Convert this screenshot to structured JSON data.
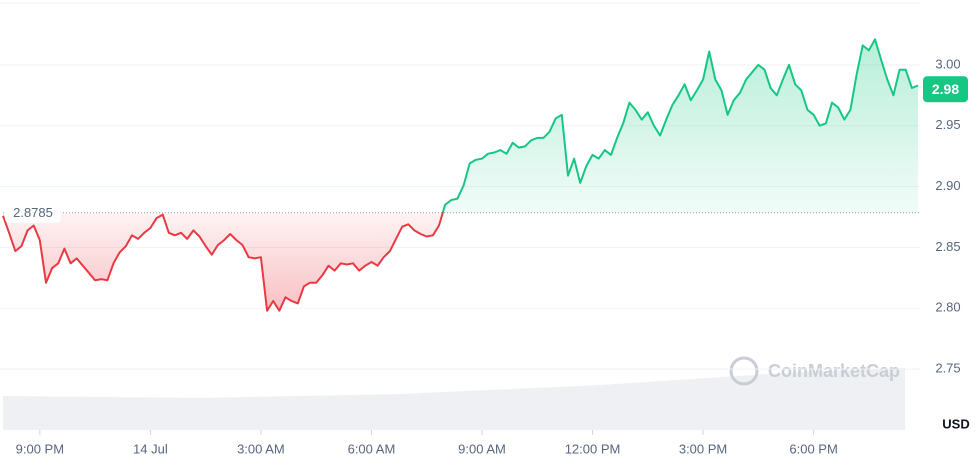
{
  "chart_data": {
    "type": "baseline-line",
    "values": [
      2.876,
      2.862,
      2.847,
      2.851,
      2.864,
      2.868,
      2.856,
      2.821,
      2.833,
      2.837,
      2.849,
      2.837,
      2.841,
      2.835,
      2.829,
      2.823,
      2.824,
      2.823,
      2.837,
      2.846,
      2.851,
      2.86,
      2.857,
      2.862,
      2.866,
      2.874,
      2.877,
      2.862,
      2.86,
      2.862,
      2.857,
      2.864,
      2.859,
      2.851,
      2.844,
      2.852,
      2.856,
      2.861,
      2.856,
      2.852,
      2.842,
      2.841,
      2.842,
      2.798,
      2.806,
      2.798,
      2.809,
      2.806,
      2.804,
      2.818,
      2.821,
      2.821,
      2.827,
      2.835,
      2.831,
      2.837,
      2.836,
      2.837,
      2.831,
      2.835,
      2.838,
      2.835,
      2.842,
      2.847,
      2.857,
      2.867,
      2.869,
      2.864,
      2.861,
      2.859,
      2.86,
      2.868,
      2.885,
      2.889,
      2.89,
      2.901,
      2.919,
      2.922,
      2.923,
      2.927,
      2.928,
      2.93,
      2.927,
      2.936,
      2.932,
      2.933,
      2.938,
      2.94,
      2.94,
      2.945,
      2.956,
      2.959,
      2.909,
      2.923,
      2.903,
      2.917,
      2.926,
      2.923,
      2.93,
      2.926,
      2.94,
      2.952,
      2.969,
      2.963,
      2.955,
      2.961,
      2.95,
      2.942,
      2.955,
      2.967,
      2.975,
      2.984,
      2.971,
      2.979,
      2.988,
      3.011,
      2.988,
      2.979,
      2.959,
      2.971,
      2.977,
      2.988,
      2.994,
      3.0,
      2.996,
      2.981,
      2.975,
      2.988,
      3.0,
      2.984,
      2.979,
      2.963,
      2.959,
      2.95,
      2.952,
      2.969,
      2.965,
      2.955,
      2.963,
      2.992,
      3.016,
      3.012,
      3.021,
      3.004,
      2.988,
      2.975,
      2.996,
      2.996,
      2.981,
      2.983
    ],
    "baseline": 2.8785,
    "current_price": 2.98,
    "up_color": "#16c784",
    "down_color": "#ea3943",
    "xlim": [
      0,
      149
    ],
    "xticks": [
      {
        "value": 6,
        "label": "9:00 PM"
      },
      {
        "value": 24,
        "label": "14 Jul"
      },
      {
        "value": 42,
        "label": "3:00 AM"
      },
      {
        "value": 60,
        "label": "6:00 AM"
      },
      {
        "value": 78,
        "label": "9:00 AM"
      },
      {
        "value": 96,
        "label": "12:00 PM"
      },
      {
        "value": 114,
        "label": "3:00 PM"
      },
      {
        "value": 132,
        "label": "6:00 PM"
      }
    ],
    "ylim": [
      2.7,
      3.05
    ],
    "yticks": [
      2.75,
      {
        "value": 2.8,
        "label": "2.80"
      },
      2.85,
      {
        "value": 2.9,
        "label": "2.90"
      },
      2.95,
      {
        "value": 3.0,
        "label": "3.00"
      }
    ],
    "y_unit": "USD",
    "watermark": "CoinMarketCap",
    "grid": true
  }
}
